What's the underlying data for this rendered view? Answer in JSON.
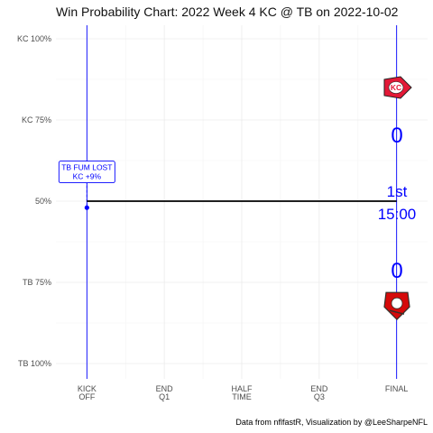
{
  "chart_data": {
    "type": "line",
    "title": "Win Probability Chart: 2022 Week 4 KC @ TB on 2022-10-02",
    "caption": "Data from nflfastR, Visualization by @LeeSharpeNFL",
    "x_ticks": [
      {
        "line1": "KICK",
        "line2": "OFF",
        "value": 0
      },
      {
        "line1": "END",
        "line2": "Q1",
        "value": 15
      },
      {
        "line1": "HALF",
        "line2": "TIME",
        "value": 30
      },
      {
        "line1": "END",
        "line2": "Q3",
        "value": 45
      },
      {
        "line1": "FINAL",
        "line2": "",
        "value": 60
      }
    ],
    "y_ticks": [
      {
        "label": "KC 100%",
        "value": 1.0
      },
      {
        "label": "KC 75%",
        "value": 0.75
      },
      {
        "label": "50%",
        "value": 0.5
      },
      {
        "label": "TB 75%",
        "value": 0.25
      },
      {
        "label": "TB 100%",
        "value": 0.0
      }
    ],
    "xlim": [
      -6,
      66
    ],
    "ylim": [
      0,
      1
    ],
    "series": [
      {
        "x": [
          0,
          60
        ],
        "y": [
          0.5,
          0.5
        ],
        "color": "#000000"
      }
    ],
    "event_points": [
      {
        "x": 0,
        "y": 0.48
      }
    ],
    "vertical_lines": [
      0,
      60
    ],
    "annotations": [
      {
        "line1": "TB FUM LOST",
        "line2": "KC +9%",
        "x": 0,
        "y": 0.59,
        "color": "#0000ff"
      }
    ],
    "scoreboard": {
      "home_team": "KC",
      "away_team": "TB",
      "kc_score": "0",
      "tb_score": "0",
      "quarter": "1st",
      "clock": "15:00"
    },
    "logos": [
      {
        "name": "kc-logo",
        "label": "KC",
        "color": "#e31837",
        "y": 0.85
      },
      {
        "name": "tb-logo",
        "label": "TB",
        "color": "#d50a0a",
        "y": 0.18
      }
    ],
    "colors": {
      "accent": "#0000ff",
      "line": "#000000",
      "grid": "#ebebeb"
    }
  }
}
